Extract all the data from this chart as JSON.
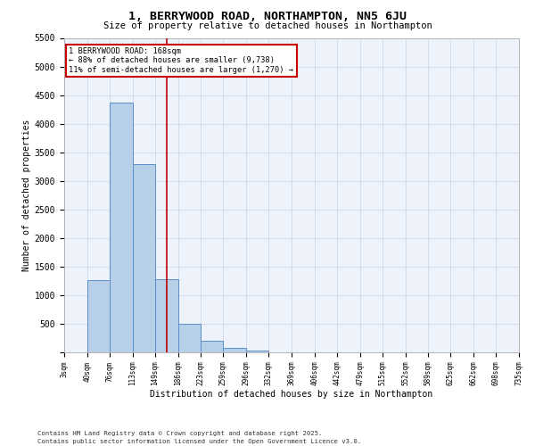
{
  "title": "1, BERRYWOOD ROAD, NORTHAMPTON, NN5 6JU",
  "subtitle": "Size of property relative to detached houses in Northampton",
  "xlabel": "Distribution of detached houses by size in Northampton",
  "ylabel": "Number of detached properties",
  "bar_color": "#b8cfe8",
  "bar_edge_color": "#5b8fcc",
  "background_color": "#eef2fa",
  "grid_color": "#c8d4e8",
  "vline_color": "#c00000",
  "vline_x": 5,
  "annotation_line1": "1 BERRYWOOD ROAD: 168sqm",
  "annotation_line2": "← 88% of detached houses are smaller (9,738)",
  "annotation_line3": "11% of semi-detached houses are larger (1,270) →",
  "annotation_box_color": "#cc0000",
  "footnote1": "Contains HM Land Registry data © Crown copyright and database right 2025.",
  "footnote2": "Contains public sector information licensed under the Open Government Licence v3.0.",
  "bin_edges": [
    3,
    40,
    76,
    113,
    149,
    186,
    223,
    259,
    296,
    332,
    369,
    406,
    442,
    479,
    515,
    552,
    589,
    625,
    662,
    698,
    735
  ],
  "counts": [
    0,
    1270,
    4370,
    3300,
    1280,
    500,
    210,
    75,
    30,
    5,
    0,
    0,
    0,
    0,
    0,
    0,
    0,
    0,
    0,
    0
  ],
  "ylim": [
    0,
    5500
  ],
  "yticks": [
    0,
    500,
    1000,
    1500,
    2000,
    2500,
    3000,
    3500,
    4000,
    4500,
    5000,
    5500
  ],
  "vline_bin_index": 4
}
